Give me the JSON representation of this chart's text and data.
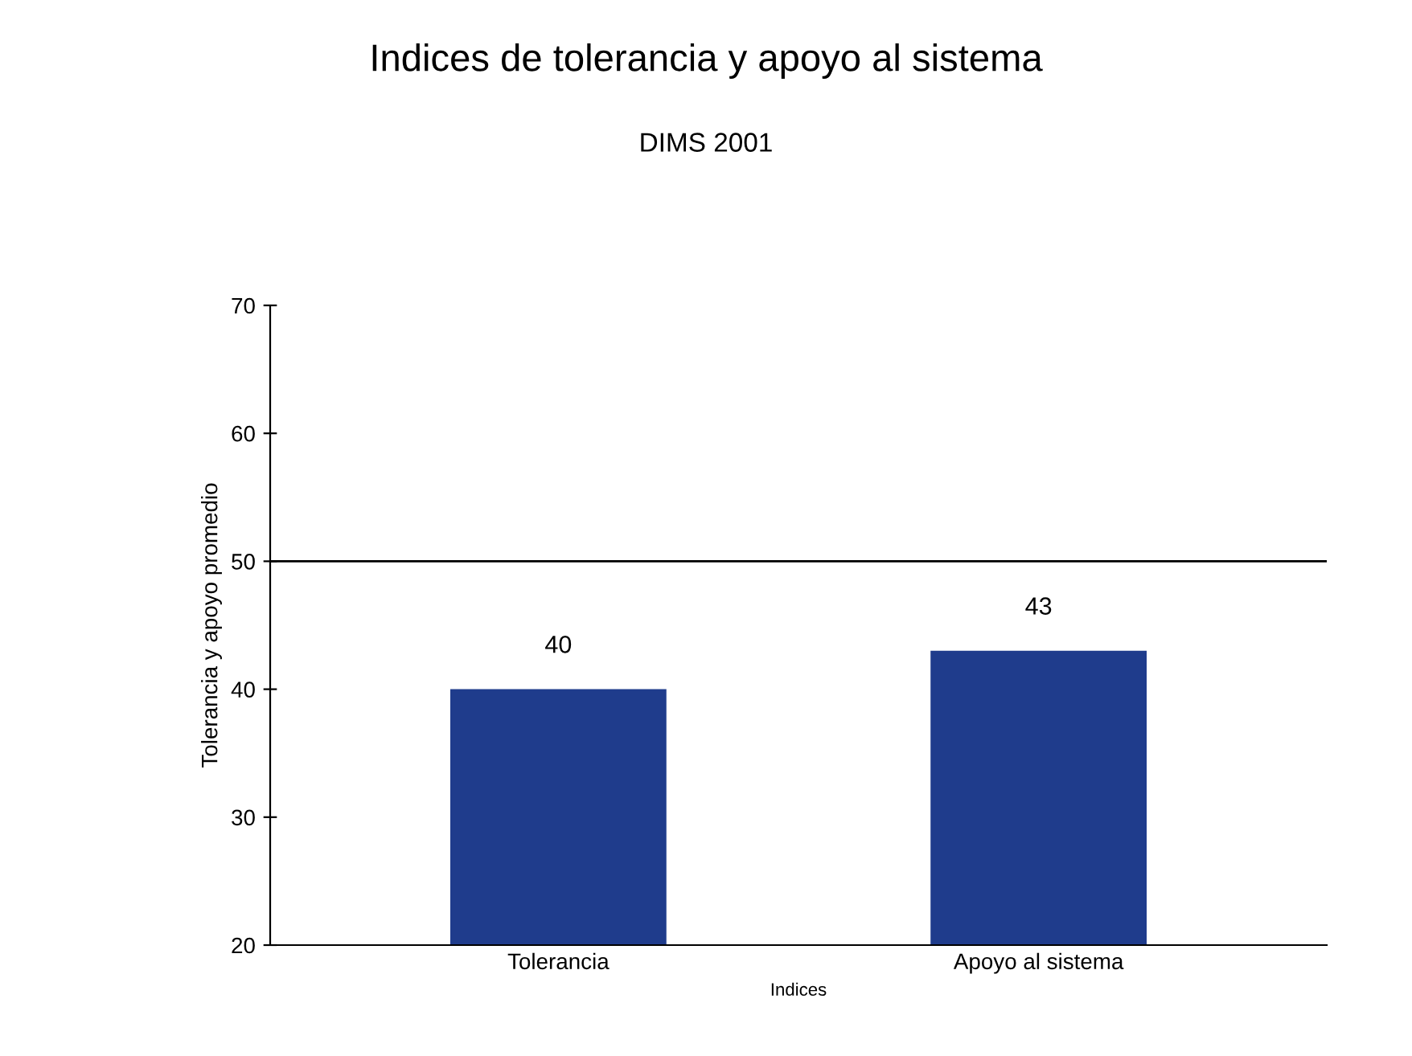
{
  "chart_data": {
    "type": "bar",
    "title": "Indices de tolerancia y apoyo al sistema",
    "subtitle": "DIMS 2001",
    "xlabel": "Indices",
    "ylabel": "Tolerancia y apoyo promedio",
    "categories": [
      "Tolerancia",
      "Apoyo al sistema"
    ],
    "values": [
      40,
      43
    ],
    "color": "#1f3c8c",
    "ylim": [
      20,
      70
    ],
    "yticks": [
      20,
      30,
      40,
      50,
      60,
      70
    ],
    "grid": false,
    "data_labels": true,
    "ref_lines": [
      {
        "axis": "y",
        "value": 50,
        "color": "#000000"
      }
    ]
  }
}
